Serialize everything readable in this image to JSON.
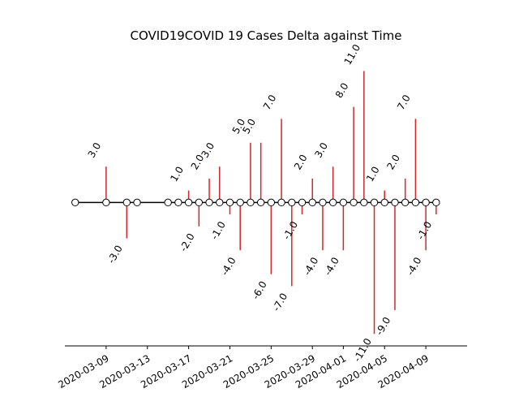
{
  "chart_data": {
    "type": "stem",
    "title": "COVID19COVID 19 Cases Delta against Time",
    "xlabel": "",
    "ylabel": "",
    "x_ticks": [
      "2020-03-09",
      "2020-03-13",
      "2020-03-17",
      "2020-03-21",
      "2020-03-25",
      "2020-03-29",
      "2020-04-01",
      "2020-04-05",
      "2020-04-09"
    ],
    "x_range": [
      "2020-03-05",
      "2020-04-13"
    ],
    "y_range": [
      -12,
      13
    ],
    "y_axis_visible": false,
    "grid": false,
    "stem_color": "#d62728",
    "baseline_color": "#000000",
    "points": [
      {
        "date": "2020-03-06",
        "value": 0,
        "label": ""
      },
      {
        "date": "2020-03-09",
        "value": 3,
        "label": "3.0"
      },
      {
        "date": "2020-03-11",
        "value": -3,
        "label": "-3.0"
      },
      {
        "date": "2020-03-12",
        "value": 0,
        "label": ""
      },
      {
        "date": "2020-03-15",
        "value": 0,
        "label": ""
      },
      {
        "date": "2020-03-16",
        "value": 0,
        "label": ""
      },
      {
        "date": "2020-03-17",
        "value": 1,
        "label": "1.0"
      },
      {
        "date": "2020-03-18",
        "value": -2,
        "label": "-2.0"
      },
      {
        "date": "2020-03-19",
        "value": 2,
        "label": "2.0"
      },
      {
        "date": "2020-03-20",
        "value": 3,
        "label": "3.0"
      },
      {
        "date": "2020-03-21",
        "value": -1,
        "label": "-1.0"
      },
      {
        "date": "2020-03-22",
        "value": -4,
        "label": "-4.0"
      },
      {
        "date": "2020-03-23",
        "value": 5,
        "label": "5.0"
      },
      {
        "date": "2020-03-24",
        "value": 5,
        "label": "5.0"
      },
      {
        "date": "2020-03-25",
        "value": -6,
        "label": "-6.0"
      },
      {
        "date": "2020-03-26",
        "value": 7,
        "label": "7.0"
      },
      {
        "date": "2020-03-27",
        "value": -7,
        "label": "-7.0"
      },
      {
        "date": "2020-03-28",
        "value": -1,
        "label": "-1.0"
      },
      {
        "date": "2020-03-29",
        "value": 2,
        "label": "2.0"
      },
      {
        "date": "2020-03-30",
        "value": -4,
        "label": "-4.0"
      },
      {
        "date": "2020-03-31",
        "value": 3,
        "label": "3.0"
      },
      {
        "date": "2020-04-01",
        "value": -4,
        "label": "-4.0"
      },
      {
        "date": "2020-04-02",
        "value": 8,
        "label": "8.0"
      },
      {
        "date": "2020-04-03",
        "value": 11,
        "label": "11.0"
      },
      {
        "date": "2020-04-04",
        "value": -11,
        "label": "-11.0"
      },
      {
        "date": "2020-04-05",
        "value": 1,
        "label": "1.0"
      },
      {
        "date": "2020-04-06",
        "value": -9,
        "label": "-9.0"
      },
      {
        "date": "2020-04-07",
        "value": 2,
        "label": "2.0"
      },
      {
        "date": "2020-04-08",
        "value": 7,
        "label": "7.0"
      },
      {
        "date": "2020-04-09",
        "value": -4,
        "label": "-4.0"
      },
      {
        "date": "2020-04-10",
        "value": -1,
        "label": "-1.0"
      }
    ]
  }
}
